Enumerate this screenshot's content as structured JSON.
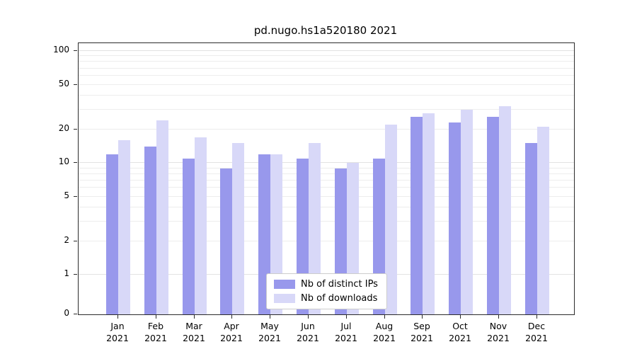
{
  "title": "pd.nugo.hs1a520180 2021",
  "chart_data": {
    "type": "bar",
    "title": "pd.nugo.hs1a520180 2021",
    "xlabel": "",
    "ylabel": "",
    "scale": "symlog",
    "ylim": [
      0,
      115
    ],
    "yticks": [
      0,
      1,
      2,
      5,
      10,
      20,
      50,
      100
    ],
    "grid": true,
    "legend_position": "bottom-center",
    "categories": [
      {
        "month": "Jan",
        "year": "2021"
      },
      {
        "month": "Feb",
        "year": "2021"
      },
      {
        "month": "Mar",
        "year": "2021"
      },
      {
        "month": "Apr",
        "year": "2021"
      },
      {
        "month": "May",
        "year": "2021"
      },
      {
        "month": "Jun",
        "year": "2021"
      },
      {
        "month": "Jul",
        "year": "2021"
      },
      {
        "month": "Aug",
        "year": "2021"
      },
      {
        "month": "Sep",
        "year": "2021"
      },
      {
        "month": "Oct",
        "year": "2021"
      },
      {
        "month": "Nov",
        "year": "2021"
      },
      {
        "month": "Dec",
        "year": "2021"
      }
    ],
    "series": [
      {
        "name": "Nb of distinct IPs",
        "color": "#9898ec",
        "values": [
          12,
          14,
          11,
          9,
          12,
          11,
          9,
          11,
          26,
          23,
          26,
          15
        ]
      },
      {
        "name": "Nb of downloads",
        "color": "#d8d8f8",
        "values": [
          16,
          24,
          17,
          15,
          12,
          15,
          10,
          22,
          28,
          30,
          32,
          21
        ]
      }
    ]
  },
  "colors": {
    "grid_minor": "#ededed",
    "grid_major": "#e2e2e2",
    "spine": "#2b2b2b"
  }
}
